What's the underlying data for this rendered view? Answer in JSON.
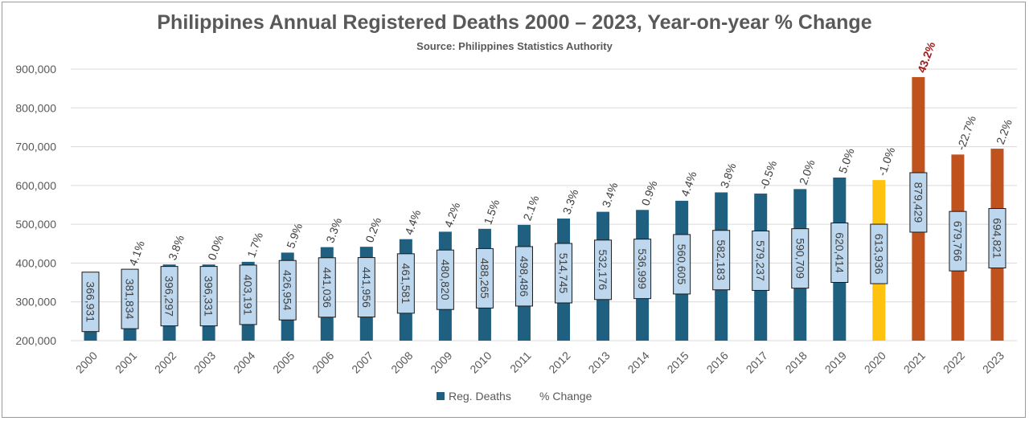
{
  "chart_data": {
    "type": "bar",
    "title": "Philippines Annual Registered Deaths 2000 – 2023, Year-on-year % Change",
    "subtitle": "Source: Philippines Statistics Authority",
    "xlabel": "",
    "ylabel": "",
    "ylim": [
      200000,
      900000
    ],
    "yticks": [
      200000,
      300000,
      400000,
      500000,
      600000,
      700000,
      800000,
      900000
    ],
    "ytick_labels": [
      "200,000",
      "300,000",
      "400,000",
      "500,000",
      "600,000",
      "700,000",
      "800,000",
      "900,000"
    ],
    "grid": true,
    "legend_position": "bottom",
    "categories": [
      "2000",
      "2001",
      "2002",
      "2003",
      "2004",
      "2005",
      "2006",
      "2007",
      "2008",
      "2009",
      "2010",
      "2011",
      "2012",
      "2013",
      "2014",
      "2015",
      "2016",
      "2017",
      "2018",
      "2019",
      "2020",
      "2021",
      "2022",
      "2023"
    ],
    "series": [
      {
        "name": "Reg. Deaths",
        "color": "#1f5f7f",
        "values": [
          366931,
          381834,
          396297,
          396331,
          403191,
          426954,
          441036,
          441956,
          461581,
          480820,
          488265,
          498486,
          514745,
          532176,
          536999,
          560605,
          582183,
          579237,
          590709,
          620414,
          613936,
          879429,
          679766,
          694821
        ],
        "labels": [
          "366,931",
          "381,834",
          "396,297",
          "396,331",
          "403,191",
          "426,954",
          "441,036",
          "441,956",
          "461,581",
          "480,820",
          "488,265",
          "498,486",
          "514,745",
          "532,176",
          "536,999",
          "560,605",
          "582,183",
          "579,237",
          "590,709",
          "620,414",
          "613,936",
          "879,429",
          "679,766",
          "694,821"
        ]
      },
      {
        "name": "% Change",
        "labels": [
          "",
          "4.1%",
          "3.8%",
          "0.0%",
          "1.7%",
          "5.9%",
          "3.3%",
          "0.2%",
          "4.4%",
          "4.2%",
          "1.5%",
          "2.1%",
          "3.3%",
          "3.4%",
          "0.9%",
          "4.4%",
          "3.8%",
          "-0.5%",
          "2.0%",
          "5.0%",
          "-1.0%",
          "43.2%",
          "-22.7%",
          "2.2%"
        ]
      }
    ],
    "bar_colors": {
      "default": "#1f5f7f",
      "2020": "#fec20f",
      "2021": "#c0521d",
      "2022": "#c0521d",
      "2023": "#c0521d"
    },
    "highlight_label_color": "#a31c1c",
    "label_box_fill": "#bdd7ee"
  }
}
